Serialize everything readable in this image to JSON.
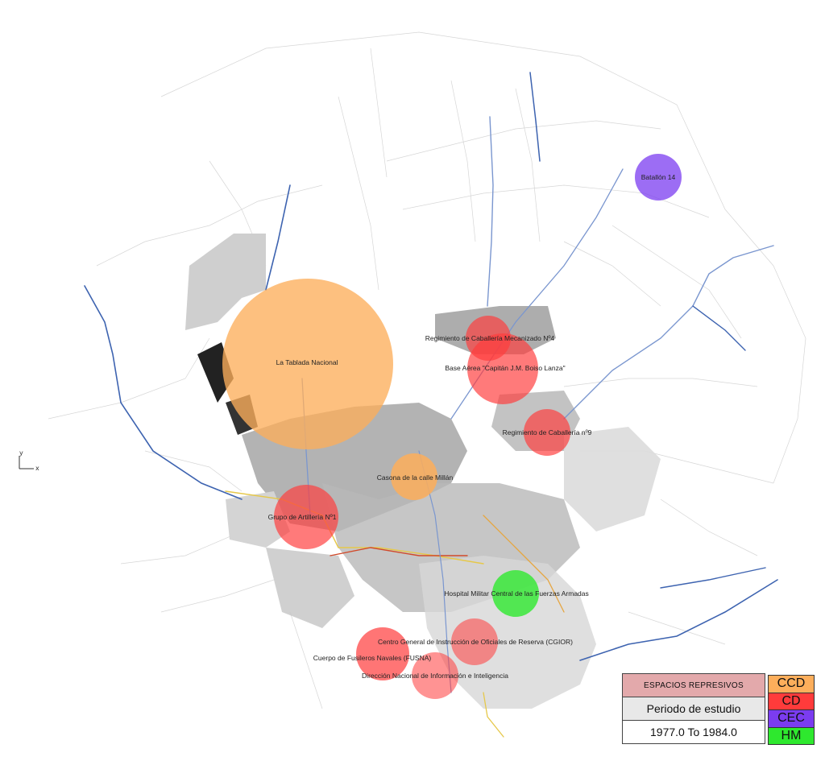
{
  "sites": [
    {
      "id": "tablada",
      "label": "La Tablada Nacional",
      "category": "CCD"
    },
    {
      "id": "batallon14",
      "label": "Batallón 14",
      "category": "CEC"
    },
    {
      "id": "reg4",
      "label": "Regimiento de Caballería Mecanizado Nº4",
      "category": "CD"
    },
    {
      "id": "baseaerea",
      "label": "Base Aérea \"Capitán J.M. Boiso Lanza\"",
      "category": "CD"
    },
    {
      "id": "reg9",
      "label": "Regimiento de Caballería nº9",
      "category": "CD"
    },
    {
      "id": "millan",
      "label": "Casona de la calle Millán",
      "category": "CCD"
    },
    {
      "id": "artilleria",
      "label": "Grupo de Artillería Nº1",
      "category": "CD"
    },
    {
      "id": "hospital",
      "label": "Hospital Militar Central de las Fuerzas Armadas",
      "category": "HM"
    },
    {
      "id": "cgior",
      "label": "Centro General de Instrucción de Oficiales de Reserva (CGIOR)",
      "category": "CD"
    },
    {
      "id": "fusna",
      "label": "Cuerpo de Fusileros Navales (FUSNA)",
      "category": "CD"
    },
    {
      "id": "dnii",
      "label": "Dirección Nacional de Información e Inteligencia",
      "category": "CD"
    }
  ],
  "legend": {
    "title": "ESPACIOS REPRESIVOS",
    "subtitle": "Periodo de estudio",
    "range": "1977.0 To 1984.0"
  },
  "categories": [
    {
      "code": "CCD",
      "color": "#fdae5b"
    },
    {
      "code": "CD",
      "color": "#ff3b3b"
    },
    {
      "code": "CEC",
      "color": "#7b3cf0"
    },
    {
      "code": "HM",
      "color": "#2ee82e"
    }
  ],
  "axis": {
    "y": "y",
    "x": "x"
  }
}
